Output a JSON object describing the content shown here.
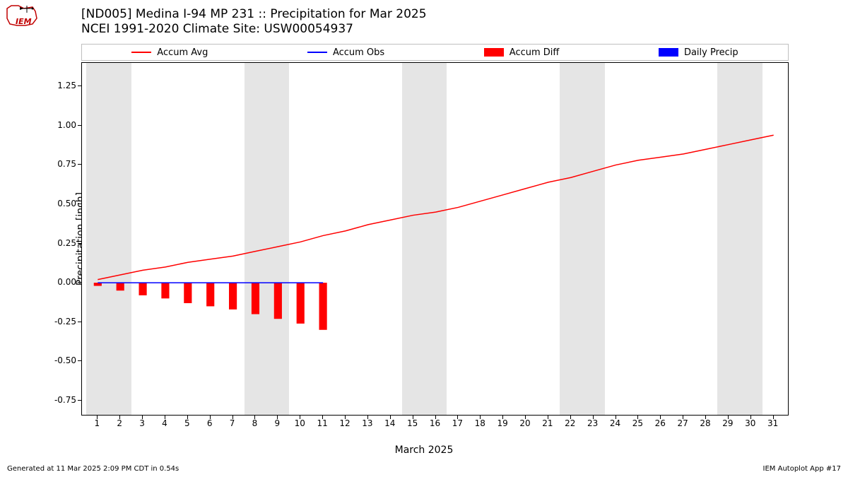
{
  "title_line1": "[ND005] Medina I-94 MP 231 :: Precipitation for Mar 2025",
  "title_line2": "NCEI 1991-2020 Climate Site: USW00054937",
  "ylabel": "Precipitation [inch]",
  "xlabel": "March 2025",
  "footer_left": "Generated at 11 Mar 2025 2:09 PM CDT in 0.54s",
  "footer_right": "IEM Autoplot App #17",
  "legend": [
    {
      "label": "Accum Avg",
      "type": "line",
      "color": "#ff0000"
    },
    {
      "label": "Accum Obs",
      "type": "line",
      "color": "#0000ff"
    },
    {
      "label": "Accum Diff",
      "type": "rect",
      "color": "#ff0000"
    },
    {
      "label": "Daily Precip",
      "type": "rect",
      "color": "#0000ff"
    }
  ],
  "chart": {
    "type": "composite",
    "x_domain": [
      0.3,
      31.7
    ],
    "y_domain": [
      -0.85,
      1.4
    ],
    "x_ticks": [
      1,
      2,
      3,
      4,
      5,
      6,
      7,
      8,
      9,
      10,
      11,
      12,
      13,
      14,
      15,
      16,
      17,
      18,
      19,
      20,
      21,
      22,
      23,
      24,
      25,
      26,
      27,
      28,
      29,
      30,
      31
    ],
    "y_ticks": [
      -0.75,
      -0.5,
      -0.25,
      0.0,
      0.25,
      0.5,
      0.75,
      1.0,
      1.25
    ],
    "weekend_bands": [
      {
        "start": 0.5,
        "end": 2.5
      },
      {
        "start": 7.5,
        "end": 9.5
      },
      {
        "start": 14.5,
        "end": 16.5
      },
      {
        "start": 21.5,
        "end": 23.5
      },
      {
        "start": 28.5,
        "end": 30.5
      }
    ],
    "accum_avg": {
      "color": "#ff0000",
      "line_width": 1.5,
      "points": [
        {
          "x": 1,
          "y": 0.02
        },
        {
          "x": 2,
          "y": 0.05
        },
        {
          "x": 3,
          "y": 0.08
        },
        {
          "x": 4,
          "y": 0.1
        },
        {
          "x": 5,
          "y": 0.13
        },
        {
          "x": 6,
          "y": 0.15
        },
        {
          "x": 7,
          "y": 0.17
        },
        {
          "x": 8,
          "y": 0.2
        },
        {
          "x": 9,
          "y": 0.23
        },
        {
          "x": 10,
          "y": 0.26
        },
        {
          "x": 11,
          "y": 0.3
        },
        {
          "x": 12,
          "y": 0.33
        },
        {
          "x": 13,
          "y": 0.37
        },
        {
          "x": 14,
          "y": 0.4
        },
        {
          "x": 15,
          "y": 0.43
        },
        {
          "x": 16,
          "y": 0.45
        },
        {
          "x": 17,
          "y": 0.48
        },
        {
          "x": 18,
          "y": 0.52
        },
        {
          "x": 19,
          "y": 0.56
        },
        {
          "x": 20,
          "y": 0.6
        },
        {
          "x": 21,
          "y": 0.64
        },
        {
          "x": 22,
          "y": 0.67
        },
        {
          "x": 23,
          "y": 0.71
        },
        {
          "x": 24,
          "y": 0.75
        },
        {
          "x": 25,
          "y": 0.78
        },
        {
          "x": 26,
          "y": 0.8
        },
        {
          "x": 27,
          "y": 0.82
        },
        {
          "x": 28,
          "y": 0.85
        },
        {
          "x": 29,
          "y": 0.88
        },
        {
          "x": 30,
          "y": 0.91
        },
        {
          "x": 31,
          "y": 0.94
        }
      ]
    },
    "accum_obs": {
      "color": "#0000ff",
      "line_width": 1.5,
      "points": [
        {
          "x": 1,
          "y": 0.0
        },
        {
          "x": 2,
          "y": 0.0
        },
        {
          "x": 3,
          "y": 0.0
        },
        {
          "x": 4,
          "y": 0.0
        },
        {
          "x": 5,
          "y": 0.0
        },
        {
          "x": 6,
          "y": 0.0
        },
        {
          "x": 7,
          "y": 0.0
        },
        {
          "x": 8,
          "y": 0.0
        },
        {
          "x": 9,
          "y": 0.0
        },
        {
          "x": 10,
          "y": 0.0
        },
        {
          "x": 11,
          "y": 0.0
        }
      ]
    },
    "accum_diff_bars": {
      "color": "#ff0000",
      "bar_width": 0.35,
      "values": [
        {
          "x": 1,
          "y": -0.02
        },
        {
          "x": 2,
          "y": -0.05
        },
        {
          "x": 3,
          "y": -0.08
        },
        {
          "x": 4,
          "y": -0.1
        },
        {
          "x": 5,
          "y": -0.13
        },
        {
          "x": 6,
          "y": -0.15
        },
        {
          "x": 7,
          "y": -0.17
        },
        {
          "x": 8,
          "y": -0.2
        },
        {
          "x": 9,
          "y": -0.23
        },
        {
          "x": 10,
          "y": -0.26
        },
        {
          "x": 11,
          "y": -0.3
        }
      ]
    },
    "daily_precip_bars": {
      "color": "#0000ff",
      "bar_width": 0.35,
      "values": []
    },
    "background_color": "#ffffff",
    "weekend_color": "#e5e5e5",
    "axis_color": "#000000",
    "tick_fontsize": 12,
    "label_fontsize": 14,
    "title_fontsize": 17
  },
  "logo": {
    "outline_color": "#c10000",
    "text": "IEM",
    "compass_color": "#000000"
  }
}
